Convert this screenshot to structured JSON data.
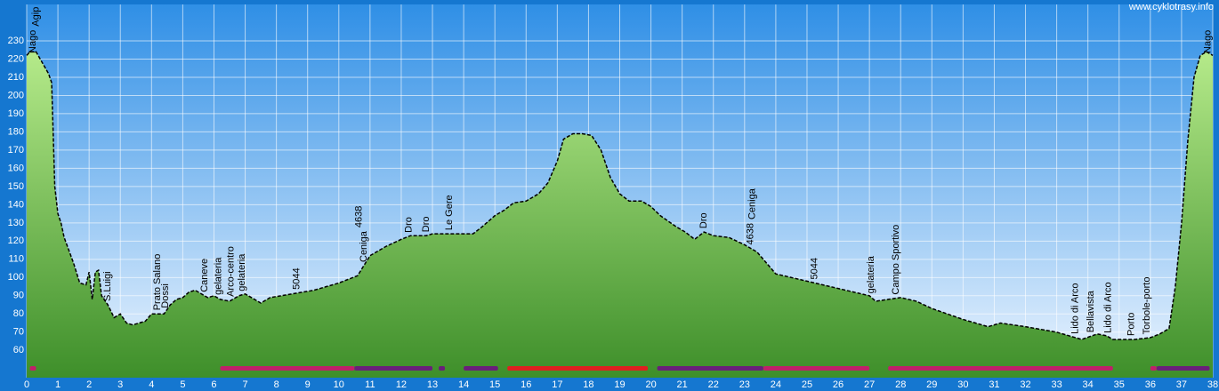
{
  "watermark": "www.cyklotrasy.info",
  "chart_data": {
    "type": "area",
    "color": "#62b840",
    "line_color": "#000000",
    "x": [
      0,
      0.1,
      0.3,
      0.5,
      0.7,
      0.8,
      0.9,
      1.0,
      1.1,
      1.2,
      1.5,
      1.7,
      1.9,
      2.0,
      2.1,
      2.2,
      2.3,
      2.4,
      2.6,
      2.8,
      3.0,
      3.2,
      3.4,
      3.6,
      3.8,
      4.0,
      4.2,
      4.4,
      4.6,
      4.8,
      5.0,
      5.2,
      5.4,
      5.6,
      5.8,
      6.0,
      6.2,
      6.5,
      6.8,
      7.0,
      7.3,
      7.5,
      7.8,
      8.5,
      9.2,
      10.0,
      10.6,
      11.0,
      11.5,
      12.0,
      12.3,
      12.8,
      13.0,
      13.4,
      13.8,
      14.0,
      14.3,
      14.6,
      15.0,
      15.3,
      15.6,
      16.0,
      16.4,
      16.7,
      17.0,
      17.2,
      17.5,
      17.8,
      18.1,
      18.4,
      18.7,
      19.0,
      19.3,
      19.7,
      20.0,
      20.3,
      20.8,
      21.1,
      21.4,
      21.7,
      22.0,
      22.5,
      23.0,
      23.4,
      23.6,
      24.0,
      25.0,
      26.0,
      26.5,
      27.0,
      27.2,
      27.6,
      28.0,
      28.5,
      29.0,
      30.0,
      30.8,
      31.2,
      32.0,
      33.0,
      33.6,
      33.8,
      34.3,
      34.6,
      34.8,
      35.5,
      36.0,
      36.3,
      36.6,
      36.8,
      37.0,
      37.2,
      37.4,
      37.6,
      37.8,
      38.0
    ],
    "values": [
      222,
      224,
      224,
      218,
      212,
      207,
      150,
      135,
      130,
      122,
      108,
      97,
      96,
      103,
      88,
      103,
      104,
      90,
      85,
      78,
      80,
      75,
      74,
      75,
      76,
      80,
      80,
      80,
      85,
      88,
      89,
      92,
      93,
      91,
      89,
      90,
      88,
      87,
      90,
      91,
      88,
      86,
      89,
      91,
      93,
      97,
      101,
      112,
      117,
      121,
      123,
      123,
      124,
      124,
      124,
      124,
      124,
      128,
      134,
      137,
      141,
      142,
      146,
      152,
      164,
      176,
      179,
      179,
      178,
      170,
      155,
      146,
      142,
      142,
      139,
      134,
      128,
      125,
      121,
      125,
      123,
      122,
      118,
      114,
      110,
      102,
      98,
      94,
      92,
      90,
      87,
      88,
      89,
      87,
      83,
      77,
      73,
      75,
      73,
      70,
      67,
      66,
      69,
      68,
      66,
      66,
      67,
      69,
      72,
      95,
      130,
      175,
      210,
      222,
      224,
      222
    ],
    "xlim": [
      0,
      38
    ],
    "ylim": [
      45,
      250
    ],
    "xticks": [
      0,
      1,
      2,
      3,
      4,
      5,
      6,
      7,
      8,
      9,
      10,
      11,
      12,
      13,
      14,
      15,
      16,
      17,
      18,
      19,
      20,
      21,
      22,
      23,
      24,
      25,
      26,
      27,
      28,
      29,
      30,
      31,
      32,
      33,
      34,
      35,
      36,
      37,
      38
    ],
    "yticks": [
      60,
      70,
      80,
      90,
      100,
      110,
      120,
      130,
      140,
      150,
      160,
      170,
      180,
      190,
      200,
      210,
      220,
      230
    ],
    "grid": true,
    "annotations": [
      {
        "text": "Nago",
        "x": 0.2
      },
      {
        "text": "Agip",
        "x": 0.3
      },
      {
        "text": "S.Luigi",
        "x": 2.6
      },
      {
        "text": "Prato Salano",
        "x": 4.2
      },
      {
        "text": "Dossi",
        "x": 4.45
      },
      {
        "text": "Caneve",
        "x": 5.7
      },
      {
        "text": "gelateria",
        "x": 6.15
      },
      {
        "text": "Arco-centro",
        "x": 6.55
      },
      {
        "text": "gelateria",
        "x": 6.9
      },
      {
        "text": "5044",
        "x": 8.65
      },
      {
        "text": "Ceniga",
        "x": 10.8
      },
      {
        "text": "4638",
        "x": 10.65
      },
      {
        "text": "Dro",
        "x": 12.25
      },
      {
        "text": "Dro",
        "x": 12.8
      },
      {
        "text": "Le Gere",
        "x": 13.55
      },
      {
        "text": "Dro",
        "x": 21.7
      },
      {
        "text": "4638",
        "x": 23.2
      },
      {
        "text": "Ceniga",
        "x": 23.25
      },
      {
        "text": "5044",
        "x": 25.25
      },
      {
        "text": "gelateria",
        "x": 27.05
      },
      {
        "text": "Campo Sportivo",
        "x": 27.85
      },
      {
        "text": "Lido di Arco",
        "x": 33.6
      },
      {
        "text": "Bellavista",
        "x": 34.1
      },
      {
        "text": "Lido di Arco",
        "x": 34.65
      },
      {
        "text": "Porto",
        "x": 35.4
      },
      {
        "text": "Torbole-porto",
        "x": 35.9
      },
      {
        "text": "Nago",
        "x": 37.85
      }
    ],
    "segments": [
      {
        "start": 0.1,
        "end": 0.3,
        "color": "#c0206a"
      },
      {
        "start": 6.2,
        "end": 10.5,
        "color": "#c0206a"
      },
      {
        "start": 10.5,
        "end": 13.0,
        "color": "#6a1f7a"
      },
      {
        "start": 13.2,
        "end": 13.4,
        "color": "#6a1f7a"
      },
      {
        "start": 14.0,
        "end": 15.1,
        "color": "#6a1f7a"
      },
      {
        "start": 15.4,
        "end": 19.9,
        "color": "#e02020"
      },
      {
        "start": 20.2,
        "end": 23.6,
        "color": "#6a1f7a"
      },
      {
        "start": 23.6,
        "end": 27.0,
        "color": "#c0206a"
      },
      {
        "start": 27.6,
        "end": 34.8,
        "color": "#c0206a"
      },
      {
        "start": 36.0,
        "end": 36.2,
        "color": "#c0206a"
      },
      {
        "start": 36.2,
        "end": 37.9,
        "color": "#6a1f7a"
      }
    ]
  }
}
